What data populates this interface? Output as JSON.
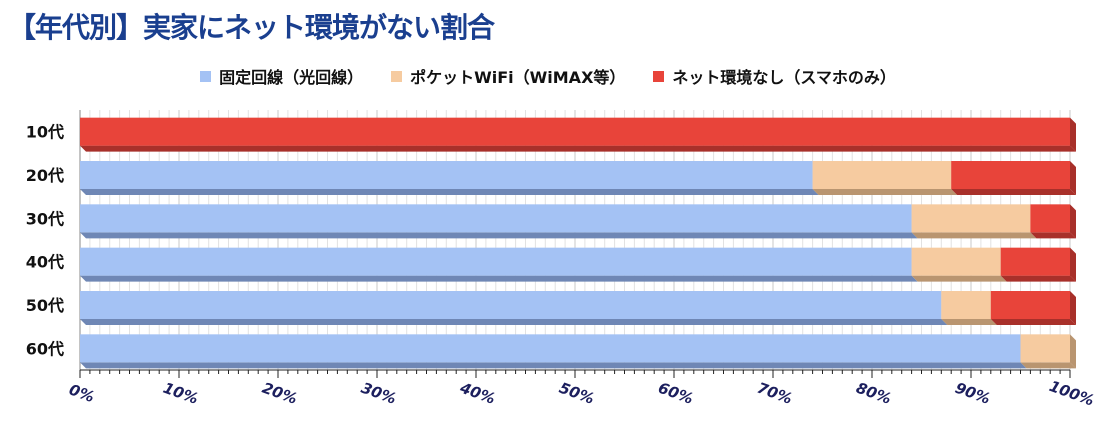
{
  "title": "【年代別】実家にネット環境がない割合",
  "chart_data": {
    "type": "bar",
    "orientation": "horizontal",
    "stacked": true,
    "categories": [
      "10代",
      "20代",
      "30代",
      "40代",
      "50代",
      "60代"
    ],
    "series": [
      {
        "name": "固定回線（光回線）",
        "color": "#a4c2f4",
        "shade": "#6f87b5",
        "values": [
          0,
          74,
          84,
          84,
          87,
          95
        ]
      },
      {
        "name": "ポケットWiFi（WiMAX等）",
        "color": "#f6cba0",
        "shade": "#b99570",
        "values": [
          0,
          14,
          12,
          9,
          5,
          5
        ]
      },
      {
        "name": "ネット環境なし（スマホのみ）",
        "color": "#e8443a",
        "shade": "#a8302a",
        "values": [
          100,
          12,
          4,
          7,
          8,
          0
        ]
      }
    ],
    "x_ticks": [
      "0%",
      "10%",
      "20%",
      "30%",
      "40%",
      "50%",
      "60%",
      "70%",
      "80%",
      "90%",
      "100%"
    ],
    "xlim": [
      0,
      100
    ],
    "grid": true,
    "legend_position": "top"
  }
}
